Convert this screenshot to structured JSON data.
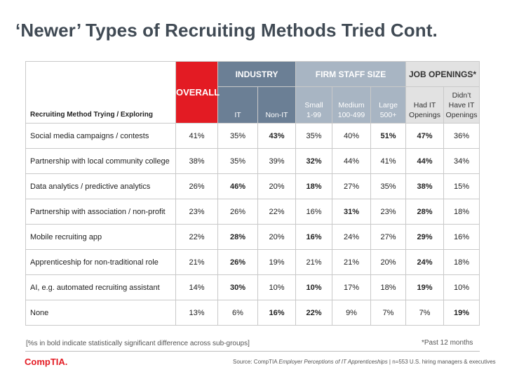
{
  "title": "‘Newer’ Types of Recruiting Methods Tried Cont.",
  "table": {
    "corner_label": "Recruiting Method Trying / Exploring",
    "overall_label": "OVERALL",
    "groups": {
      "industry": "INDUSTRY",
      "firm": "FIRM STAFF SIZE",
      "job": "JOB OPENINGS*"
    },
    "subheaders": {
      "it": "IT",
      "nonit": "Non-IT",
      "small": [
        "Small",
        "1-99"
      ],
      "medium": [
        "Medium",
        "100-499"
      ],
      "large": [
        "Large",
        "500+"
      ],
      "had": [
        "Had IT",
        "Openings"
      ],
      "didnt": [
        "Didn’t",
        "Have IT",
        "Openings"
      ]
    },
    "rows": [
      {
        "label": "Social media campaigns / contests",
        "values": [
          "41%",
          "35%",
          "43%",
          "35%",
          "40%",
          "51%",
          "47%",
          "36%"
        ],
        "bold": [
          false,
          false,
          true,
          false,
          false,
          true,
          true,
          false
        ]
      },
      {
        "label": "Partnership with local community college",
        "values": [
          "38%",
          "35%",
          "39%",
          "32%",
          "44%",
          "41%",
          "44%",
          "34%"
        ],
        "bold": [
          false,
          false,
          false,
          true,
          false,
          false,
          true,
          false
        ]
      },
      {
        "label": "Data analytics / predictive analytics",
        "values": [
          "26%",
          "46%",
          "20%",
          "18%",
          "27%",
          "35%",
          "38%",
          "15%"
        ],
        "bold": [
          false,
          true,
          false,
          true,
          false,
          false,
          true,
          false
        ]
      },
      {
        "label": "Partnership with association / non-profit",
        "values": [
          "23%",
          "26%",
          "22%",
          "16%",
          "31%",
          "23%",
          "28%",
          "18%"
        ],
        "bold": [
          false,
          false,
          false,
          false,
          true,
          false,
          true,
          false
        ]
      },
      {
        "label": "Mobile recruiting app",
        "values": [
          "22%",
          "28%",
          "20%",
          "16%",
          "24%",
          "27%",
          "29%",
          "16%"
        ],
        "bold": [
          false,
          true,
          false,
          true,
          false,
          false,
          true,
          false
        ]
      },
      {
        "label": "Apprenticeship for non-traditional role",
        "values": [
          "21%",
          "26%",
          "19%",
          "21%",
          "21%",
          "20%",
          "24%",
          "18%"
        ],
        "bold": [
          false,
          true,
          false,
          false,
          false,
          false,
          true,
          false
        ]
      },
      {
        "label": "AI, e.g. automated recruiting assistant",
        "values": [
          "14%",
          "30%",
          "10%",
          "10%",
          "17%",
          "18%",
          "19%",
          "10%"
        ],
        "bold": [
          false,
          true,
          false,
          true,
          false,
          false,
          true,
          false
        ]
      },
      {
        "label": "None",
        "values": [
          "13%",
          "6%",
          "16%",
          "22%",
          "9%",
          "7%",
          "7%",
          "19%"
        ],
        "bold": [
          false,
          false,
          true,
          true,
          false,
          false,
          false,
          true
        ]
      }
    ]
  },
  "footer": {
    "note": "[%s in bold indicate statistically significant difference across sub-groups]",
    "past": "*Past 12 months",
    "logo": "CompTIA.",
    "source_prefix": "Source: CompTIA ",
    "source_title": "Employer Perceptions of IT Apprenticeships",
    "source_suffix": " | n=553 U.S. hiring managers & executives"
  },
  "colors": {
    "overall": "#e31b23",
    "industry": "#6b7f95",
    "firm": "#a8b5c3",
    "job": "#e2e2e2"
  }
}
